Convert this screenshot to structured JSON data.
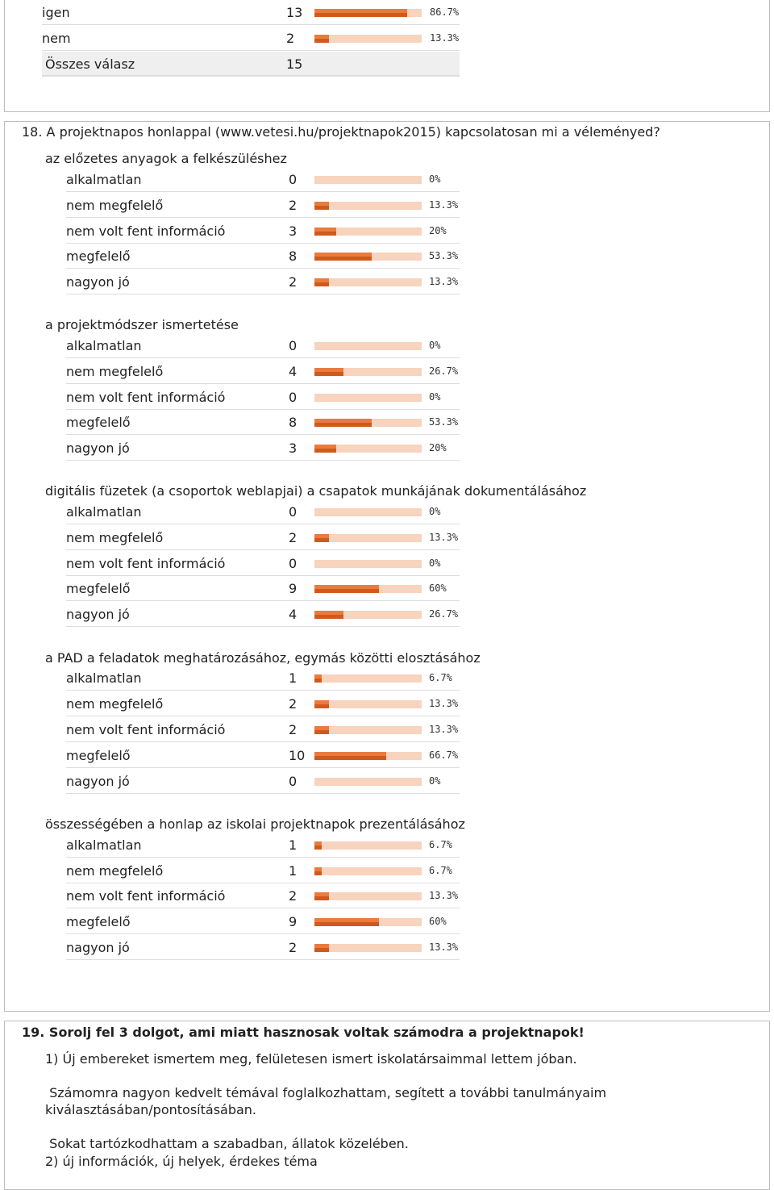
{
  "top_block": {
    "rows": [
      {
        "label": "igen",
        "count": "13",
        "percent": "86.7%",
        "fraction": 0.867
      },
      {
        "label": "nem",
        "count": "2",
        "percent": "13.3%",
        "fraction": 0.133
      }
    ],
    "total_label": "Összes válasz",
    "total_count": "15"
  },
  "q18": {
    "title": "18. A projektnapos honlappal (www.vetesi.hu/projektnapok2015) kapcsolatosan mi a véleményed?",
    "groups": [
      {
        "title": "az előzetes anyagok a felkészüléshez",
        "rows": [
          {
            "label": "alkalmatlan",
            "count": "0",
            "percent": "0%",
            "fraction": 0
          },
          {
            "label": "nem megfelelő",
            "count": "2",
            "percent": "13.3%",
            "fraction": 0.133
          },
          {
            "label": "nem volt fent információ",
            "count": "3",
            "percent": "20%",
            "fraction": 0.2
          },
          {
            "label": "megfelelő",
            "count": "8",
            "percent": "53.3%",
            "fraction": 0.533
          },
          {
            "label": "nagyon jó",
            "count": "2",
            "percent": "13.3%",
            "fraction": 0.133
          }
        ]
      },
      {
        "title": "a projektmódszer ismertetése",
        "rows": [
          {
            "label": "alkalmatlan",
            "count": "0",
            "percent": "0%",
            "fraction": 0
          },
          {
            "label": "nem megfelelő",
            "count": "4",
            "percent": "26.7%",
            "fraction": 0.267
          },
          {
            "label": "nem volt fent információ",
            "count": "0",
            "percent": "0%",
            "fraction": 0
          },
          {
            "label": "megfelelő",
            "count": "8",
            "percent": "53.3%",
            "fraction": 0.533
          },
          {
            "label": "nagyon jó",
            "count": "3",
            "percent": "20%",
            "fraction": 0.2
          }
        ]
      },
      {
        "title": "digitális füzetek (a csoportok weblapjai) a csapatok munkájának dokumentálásához",
        "rows": [
          {
            "label": "alkalmatlan",
            "count": "0",
            "percent": "0%",
            "fraction": 0
          },
          {
            "label": "nem megfelelő",
            "count": "2",
            "percent": "13.3%",
            "fraction": 0.133
          },
          {
            "label": "nem volt fent információ",
            "count": "0",
            "percent": "0%",
            "fraction": 0
          },
          {
            "label": "megfelelő",
            "count": "9",
            "percent": "60%",
            "fraction": 0.6
          },
          {
            "label": "nagyon jó",
            "count": "4",
            "percent": "26.7%",
            "fraction": 0.267
          }
        ]
      },
      {
        "title": "a PAD a feladatok meghatározásához, egymás közötti elosztásához",
        "rows": [
          {
            "label": "alkalmatlan",
            "count": "1",
            "percent": "6.7%",
            "fraction": 0.067
          },
          {
            "label": "nem megfelelő",
            "count": "2",
            "percent": "13.3%",
            "fraction": 0.133
          },
          {
            "label": "nem volt fent információ",
            "count": "2",
            "percent": "13.3%",
            "fraction": 0.133
          },
          {
            "label": "megfelelő",
            "count": "10",
            "percent": "66.7%",
            "fraction": 0.667
          },
          {
            "label": "nagyon jó",
            "count": "0",
            "percent": "0%",
            "fraction": 0
          }
        ]
      },
      {
        "title": "összességében a honlap az iskolai projektnapok prezentálásához",
        "rows": [
          {
            "label": "alkalmatlan",
            "count": "1",
            "percent": "6.7%",
            "fraction": 0.067
          },
          {
            "label": "nem megfelelő",
            "count": "1",
            "percent": "6.7%",
            "fraction": 0.067
          },
          {
            "label": "nem volt fent információ",
            "count": "2",
            "percent": "13.3%",
            "fraction": 0.133
          },
          {
            "label": "megfelelő",
            "count": "9",
            "percent": "60%",
            "fraction": 0.6
          },
          {
            "label": "nagyon jó",
            "count": "2",
            "percent": "13.3%",
            "fraction": 0.133
          }
        ]
      }
    ]
  },
  "q19": {
    "title": "19. Sorolj fel 3 dolgot, ami miatt hasznosak voltak számodra a projektnapok!",
    "answers": [
      "1) Új embereket ismertem meg, felületesen ismert iskolatársaimmal lettem jóban.",
      " Számomra nagyon kedvelt témával foglalkozhattam, segített a további tanulmányaim",
      "kiválasztásában/pontosításában.",
      " Sokat tartózkodhattam a szabadban, állatok közelében.",
      "2) új információk, új helyek, érdekes téma"
    ]
  },
  "colors": {
    "bar_background": "#f8d3bd",
    "bar_fill": "#ea7b3d",
    "bar_fill_dark": "#d05a1d"
  }
}
